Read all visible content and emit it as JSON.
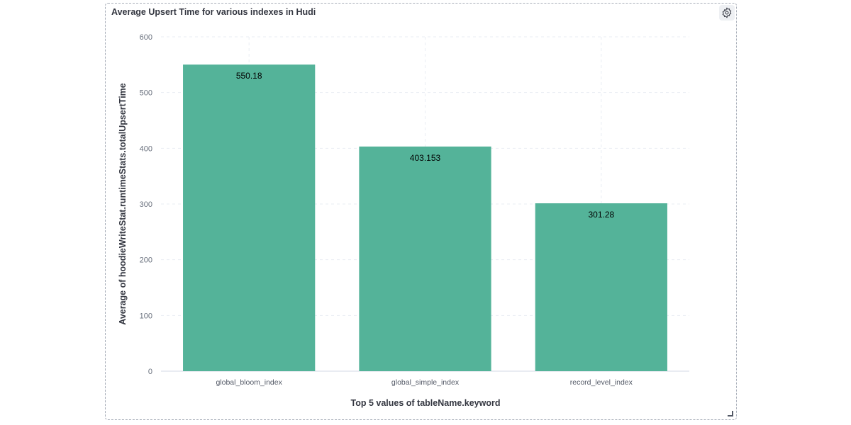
{
  "panel": {
    "title": "Average Upsert Time for various indexes in Hudi"
  },
  "chart_data": {
    "type": "bar",
    "title": "Average Upsert Time for various indexes in Hudi",
    "categories": [
      "global_bloom_index",
      "global_simple_index",
      "record_level_index"
    ],
    "values": [
      550.18,
      403.153,
      301.28
    ],
    "value_labels": [
      "550.18",
      "403.153",
      "301.28"
    ],
    "xlabel": "Top 5 values of tableName.keyword",
    "ylabel": "Average of hoodieWriteStat.runtimeStats.totalUpsertTime",
    "ylim": [
      0,
      600
    ],
    "yticks": [
      0,
      100,
      200,
      300,
      400,
      500,
      600
    ],
    "grid": true,
    "color": "#54b399"
  }
}
